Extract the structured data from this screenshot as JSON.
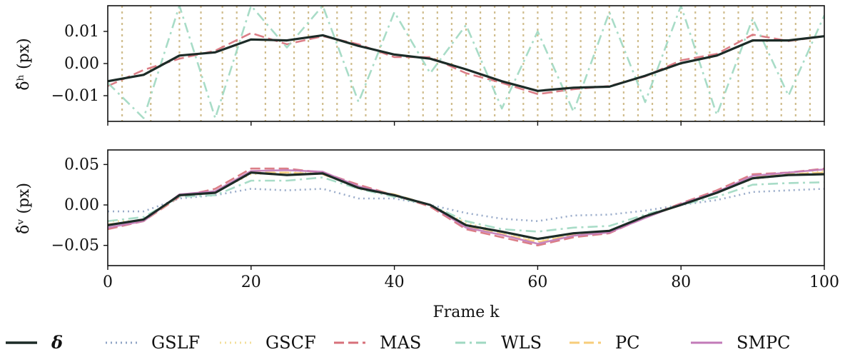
{
  "chart_data": [
    {
      "type": "line",
      "panel": "top",
      "ylabel": "δ̂ʰ (px)",
      "xlim": [
        0,
        100
      ],
      "ylim": [
        -0.018,
        0.018
      ],
      "yticks": [
        -0.01,
        0.0,
        0.01
      ],
      "ytick_labels": [
        "−0.01",
        "0.00",
        "0.01"
      ],
      "x": [
        0,
        5,
        10,
        15,
        20,
        25,
        30,
        35,
        40,
        45,
        50,
        55,
        60,
        65,
        70,
        75,
        80,
        85,
        90,
        95,
        100
      ],
      "series": [
        {
          "name": "δ",
          "values": [
            -0.0055,
            -0.0035,
            0.0025,
            0.0035,
            0.0075,
            0.0072,
            0.0088,
            0.0055,
            0.0028,
            0.0015,
            -0.0018,
            -0.0055,
            -0.0085,
            -0.0075,
            -0.0072,
            -0.0038,
            0.0001,
            0.0025,
            0.0072,
            0.0072,
            0.0085
          ]
        },
        {
          "name": "MAS",
          "values": [
            -0.007,
            -0.002,
            0.0015,
            0.004,
            0.0095,
            0.006,
            0.0085,
            0.006,
            0.002,
            0.002,
            -0.003,
            -0.006,
            -0.0095,
            -0.008,
            -0.007,
            -0.004,
            0.001,
            0.003,
            0.009,
            0.007,
            0.0085
          ]
        },
        {
          "name": "WLS",
          "values": [
            -0.006,
            -0.017,
            0.018,
            -0.017,
            0.018,
            0.005,
            0.018,
            -0.012,
            0.016,
            -0.003,
            0.012,
            -0.014,
            0.01,
            -0.015,
            0.016,
            -0.012,
            0.018,
            -0.016,
            0.014,
            -0.01,
            0.015
          ]
        }
      ]
    },
    {
      "type": "line",
      "panel": "bottom",
      "ylabel": "δ̂ᵛ (px)",
      "xlabel": "Frame k",
      "xlim": [
        0,
        100
      ],
      "ylim": [
        -0.075,
        0.068
      ],
      "yticks": [
        -0.05,
        0.0,
        0.05
      ],
      "ytick_labels": [
        "−0.05",
        "0.00",
        "0.05"
      ],
      "xticks": [
        0,
        20,
        40,
        60,
        80,
        100
      ],
      "xtick_labels": [
        "0",
        "20",
        "40",
        "60",
        "80",
        "100"
      ],
      "x": [
        0,
        5,
        10,
        15,
        20,
        25,
        30,
        35,
        40,
        45,
        50,
        55,
        60,
        65,
        70,
        75,
        80,
        85,
        90,
        95,
        100
      ],
      "series": [
        {
          "name": "δ",
          "values": [
            -0.025,
            -0.018,
            0.012,
            0.015,
            0.04,
            0.037,
            0.039,
            0.021,
            0.012,
            0.0,
            -0.025,
            -0.033,
            -0.042,
            -0.035,
            -0.032,
            -0.014,
            0.0,
            0.015,
            0.033,
            0.037,
            0.038
          ]
        },
        {
          "name": "GSLF",
          "values": [
            -0.008,
            -0.008,
            0.008,
            0.012,
            0.02,
            0.018,
            0.02,
            0.008,
            0.008,
            0.0,
            -0.01,
            -0.017,
            -0.02,
            -0.013,
            -0.012,
            -0.007,
            0.0,
            0.006,
            0.016,
            0.018,
            0.02
          ]
        },
        {
          "name": "GSCF",
          "values": [
            -0.02,
            -0.02,
            0.012,
            0.016,
            0.038,
            0.04,
            0.04,
            0.02,
            0.012,
            0.0,
            -0.022,
            -0.034,
            -0.045,
            -0.036,
            -0.033,
            -0.015,
            0.0,
            0.016,
            0.032,
            0.037,
            0.042
          ]
        },
        {
          "name": "MAS",
          "values": [
            -0.03,
            -0.02,
            0.01,
            0.02,
            0.045,
            0.045,
            0.04,
            0.025,
            0.012,
            -0.002,
            -0.03,
            -0.04,
            -0.05,
            -0.04,
            -0.035,
            -0.015,
            0.002,
            0.018,
            0.038,
            0.04,
            0.045
          ]
        },
        {
          "name": "WLS",
          "values": [
            -0.02,
            -0.015,
            0.01,
            0.012,
            0.03,
            0.03,
            0.034,
            0.02,
            0.01,
            0.0,
            -0.02,
            -0.03,
            -0.033,
            -0.028,
            -0.026,
            -0.012,
            0.0,
            0.01,
            0.025,
            0.027,
            0.028
          ]
        },
        {
          "name": "PC",
          "values": [
            -0.024,
            -0.02,
            0.012,
            0.015,
            0.04,
            0.04,
            0.038,
            0.022,
            0.013,
            0.0,
            -0.026,
            -0.036,
            -0.046,
            -0.037,
            -0.032,
            -0.015,
            0.0,
            0.015,
            0.034,
            0.038,
            0.04
          ]
        },
        {
          "name": "SMPC",
          "values": [
            -0.028,
            -0.02,
            0.013,
            0.017,
            0.042,
            0.043,
            0.041,
            0.023,
            0.012,
            0.0,
            -0.028,
            -0.037,
            -0.048,
            -0.038,
            -0.034,
            -0.016,
            0.001,
            0.016,
            0.036,
            0.04,
            0.044
          ]
        }
      ]
    }
  ],
  "legend": [
    {
      "label": "δ",
      "color": "#1c2b27",
      "dash": "solid",
      "bold": true
    },
    {
      "label": "GSLF",
      "color": "#8fa3c4",
      "dash": "dotted"
    },
    {
      "label": "GSCF",
      "color": "#f3df9a",
      "dash": "dotted"
    },
    {
      "label": "MAS",
      "color": "#d7707a",
      "dash": "dashed"
    },
    {
      "label": "WLS",
      "color": "#9fd8c1",
      "dash": "dashdot"
    },
    {
      "label": "PC",
      "color": "#f7cd7a",
      "dash": "dashed"
    },
    {
      "label": "SMPC",
      "color": "#c27ab8",
      "dash": "solid"
    }
  ],
  "colors": {
    "delta": "#1c2b27",
    "GSLF": "#8fa3c4",
    "GSCF": "#f3df9a",
    "MAS": "#d7707a",
    "WLS": "#9fd8c1",
    "PC": "#f7cd7a",
    "SMPC": "#c27ab8",
    "vertical_spikes": "#c8b27a"
  }
}
